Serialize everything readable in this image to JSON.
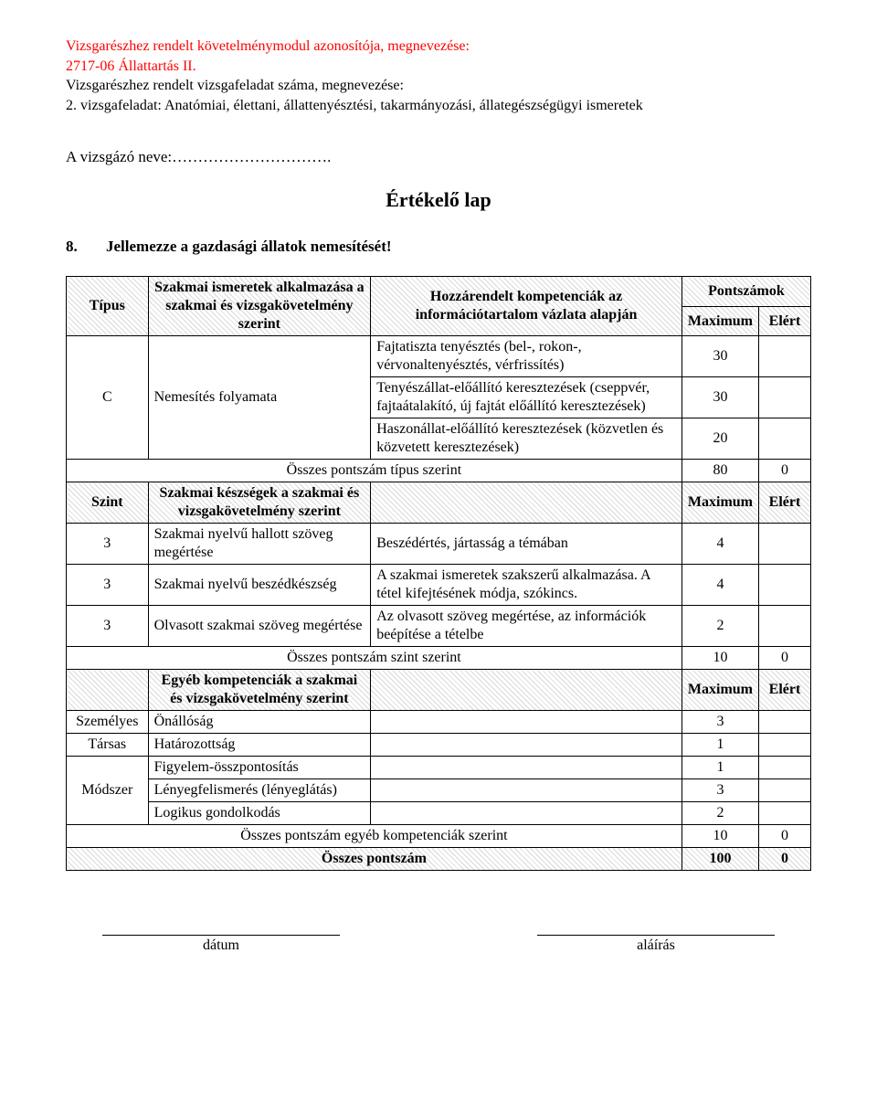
{
  "header": {
    "line1": "Vizsgarészhez rendelt követelménymodul azonosítója, megnevezése:",
    "line2": "2717-06 Állattartás II.",
    "line3": "Vizsgarészhez rendelt vizsgafeladat száma, megnevezése:",
    "line4": "2. vizsgafeladat: Anatómiai, élettani, állattenyésztési, takarmányozási, állategészségügyi ismeretek"
  },
  "examinee_label": "A vizsgázó neve:………………………….",
  "title": "Értékelő lap",
  "question": {
    "num": "8.",
    "text": "Jellemezze a gazdasági állatok nemesítését!"
  },
  "colors": {
    "red": "#ff0000",
    "black": "#000000",
    "white": "#ffffff",
    "hatch": "#d9d9d9"
  },
  "typeSection": {
    "head": {
      "c1": "Típus",
      "c2": "Szakmai ismeretek alkalmazása a szakmai és vizsgakövetelmény szerint",
      "c3": "Hozzárendelt kompetenciák az információtartalom vázlata alapján",
      "p": "Pontszámok",
      "max": "Maximum",
      "el": "Elért"
    },
    "rows": [
      {
        "type": "C",
        "mid": "Nemesítés folyamata",
        "items": [
          {
            "desc": "Fajtatiszta tenyésztés (bel-, rokon-, vérvonaltenyésztés, vérfrissítés)",
            "max": "30"
          },
          {
            "desc": "Tenyészállat-előállító keresztezések (cseppvér, fajtaátalakító, új fajtát előállító keresztezések)",
            "max": "30"
          },
          {
            "desc": "Haszonállat-előállító keresztezések (közvetlen és közvetett keresztezések)",
            "max": "20"
          }
        ]
      }
    ],
    "total": {
      "label": "Összes pontszám típus szerint",
      "max": "80",
      "el": "0"
    }
  },
  "levelSection": {
    "head": {
      "c1": "Szint",
      "c2": "Szakmai készségek a szakmai és vizsgakövetelmény szerint",
      "max": "Maximum",
      "el": "Elért"
    },
    "rows": [
      {
        "lvl": "3",
        "mid": "Szakmai nyelvű hallott szöveg megértése",
        "desc": "Beszédértés, jártasság a témában",
        "max": "4"
      },
      {
        "lvl": "3",
        "mid": "Szakmai nyelvű beszédkészség",
        "desc": "A szakmai ismeretek szakszerű alkalmazása. A tétel kifejtésének módja, szókincs.",
        "max": "4"
      },
      {
        "lvl": "3",
        "mid": "Olvasott szakmai szöveg megértése",
        "desc": "Az olvasott szöveg megértése, az információk beépítése a tételbe",
        "max": "2"
      }
    ],
    "total": {
      "label": "Összes pontszám szint szerint",
      "max": "10",
      "el": "0"
    }
  },
  "otherSection": {
    "head": {
      "c2": "Egyéb kompetenciák a szakmai és vizsgakövetelmény szerint",
      "max": "Maximum",
      "el": "Elért"
    },
    "groups": [
      {
        "cat": "Személyes",
        "items": [
          {
            "mid": "Önállóság",
            "max": "3"
          }
        ]
      },
      {
        "cat": "Társas",
        "items": [
          {
            "mid": "Határozottság",
            "max": "1"
          }
        ]
      },
      {
        "cat": "Módszer",
        "items": [
          {
            "mid": "Figyelem-összpontosítás",
            "max": "1"
          },
          {
            "mid": "Lényegfelismerés (lényeglátás)",
            "max": "3"
          },
          {
            "mid": "Logikus gondolkodás",
            "max": "2"
          }
        ]
      }
    ],
    "total": {
      "label": "Összes pontszám egyéb kompetenciák szerint",
      "max": "10",
      "el": "0"
    }
  },
  "grand": {
    "label": "Összes pontszám",
    "max": "100",
    "el": "0"
  },
  "sig": {
    "date": "dátum",
    "sign": "aláírás"
  }
}
